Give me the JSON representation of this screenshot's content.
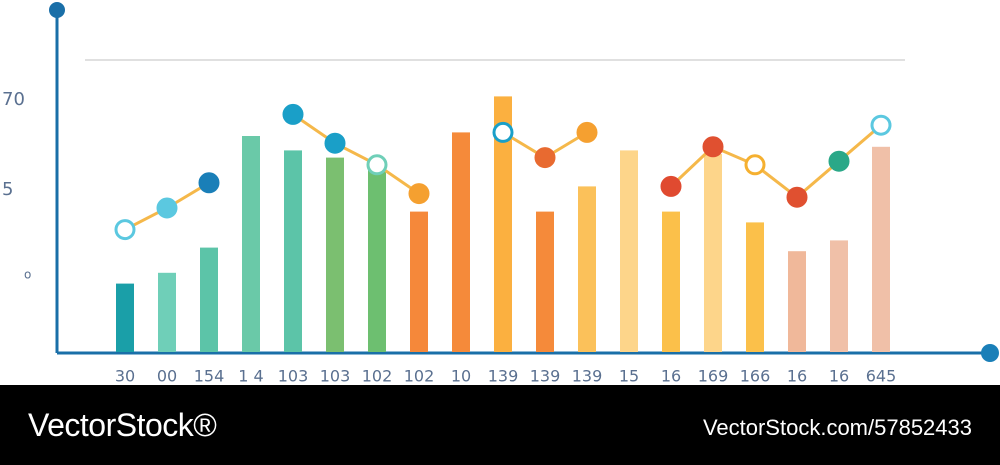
{
  "chart_data": {
    "type": "bar",
    "categories": [
      "30",
      "00",
      "154",
      "1 4",
      "103",
      "103",
      "102",
      "102",
      "10",
      "139",
      "139",
      "139",
      "15",
      "16",
      "169",
      "166",
      "16",
      "16",
      "645"
    ],
    "values": [
      19,
      22,
      29,
      60,
      56,
      54,
      51,
      39,
      61,
      71,
      39,
      46,
      56,
      39,
      55,
      36,
      28,
      31,
      57
    ],
    "colors": [
      "#1a9fa8",
      "#6fcfb8",
      "#5cc4a8",
      "#6ac9a8",
      "#5cc4a8",
      "#7bbf70",
      "#6dbf70",
      "#f5883a",
      "#f58a3a",
      "#fbb040",
      "#f58a3a",
      "#fbc15a",
      "#fdd58a",
      "#fbc04a",
      "#fdd58a",
      "#fbc04a",
      "#f0b89a",
      "#f0c0a8",
      "#f0c0a8"
    ],
    "line": {
      "values": [
        34,
        40,
        47,
        null,
        66,
        58,
        52,
        44,
        null,
        61,
        54,
        61,
        null,
        46,
        57,
        52,
        43,
        53,
        63
      ],
      "point_colors": [
        "#5bc8e0",
        "#5bc8e0",
        "#1a7fb8",
        null,
        "#1a9fc8",
        "#1a9fc8",
        "#6fcfb8",
        "#f5a030",
        null,
        "#1a9fc8",
        "#e86a30",
        "#f5a030",
        null,
        "#e04a30",
        "#e05030",
        "#f5b030",
        "#e05030",
        "#2aa888",
        "#5bc8e0"
      ]
    },
    "ylim": [
      0,
      90
    ],
    "y_labels": [
      "70",
      "5",
      "o"
    ]
  },
  "footer": {
    "brand": "VectorStock®",
    "ref": "VectorStock.com/57852433"
  }
}
